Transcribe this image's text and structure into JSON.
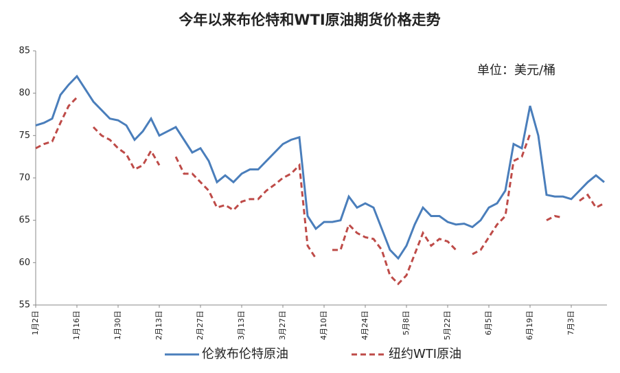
{
  "chart_data": {
    "type": "line",
    "title": "今年以来布伦特和WTI原油期货价格走势",
    "annotation": "单位：美元/桶",
    "categories": [
      "1月2日",
      null,
      null,
      null,
      null,
      "1月16日",
      null,
      null,
      null,
      null,
      "1月30日",
      null,
      null,
      null,
      null,
      "2月13日",
      null,
      null,
      null,
      null,
      "2月27日",
      null,
      null,
      null,
      null,
      "3月13日",
      null,
      null,
      null,
      null,
      "3月27日",
      null,
      null,
      null,
      null,
      "4月10日",
      null,
      null,
      null,
      null,
      "4月24日",
      null,
      null,
      null,
      null,
      "5月8日",
      null,
      null,
      null,
      null,
      "5月22日",
      null,
      null,
      null,
      null,
      "6月5日",
      null,
      null,
      null,
      null,
      "6月19日",
      null,
      null,
      null,
      null,
      "7月3日",
      null,
      null,
      null,
      null
    ],
    "series": [
      {
        "name": "伦敦布伦特原油",
        "color": "#4a7ebb",
        "dash": false,
        "values": [
          76.2,
          76.5,
          77.0,
          79.8,
          81.0,
          82.0,
          80.5,
          79.0,
          78.0,
          77.0,
          76.8,
          76.2,
          74.5,
          75.5,
          77.0,
          75.0,
          75.5,
          76.0,
          74.5,
          73.0,
          73.5,
          72.0,
          69.5,
          70.3,
          69.5,
          70.5,
          71.0,
          71.0,
          72.0,
          73.0,
          74.0,
          74.5,
          74.8,
          65.5,
          64.0,
          64.8,
          64.8,
          65.0,
          67.8,
          66.5,
          67.0,
          66.5,
          64.0,
          61.5,
          60.5,
          62.0,
          64.5,
          66.5,
          65.5,
          65.5,
          64.8,
          64.5,
          64.6,
          64.2,
          65.0,
          66.5,
          67.0,
          68.5,
          74.0,
          73.5,
          78.5,
          75.0,
          68.0,
          67.8,
          67.8,
          67.5,
          68.5,
          69.5,
          70.3,
          69.5
        ]
      },
      {
        "name": "纽约WTI原油",
        "color": "#be4b48",
        "dash": true,
        "values": [
          73.5,
          74.0,
          74.3,
          76.5,
          78.5,
          79.5,
          null,
          76.0,
          75.0,
          74.5,
          73.5,
          72.8,
          71.0,
          71.5,
          73.2,
          71.5,
          null,
          72.5,
          70.5,
          70.5,
          69.5,
          68.5,
          66.5,
          66.8,
          66.2,
          67.2,
          67.5,
          67.5,
          68.5,
          69.2,
          70.0,
          70.5,
          71.5,
          62.0,
          60.5,
          null,
          61.5,
          61.5,
          64.5,
          63.5,
          63.0,
          62.8,
          61.5,
          58.5,
          57.5,
          58.5,
          61.0,
          63.5,
          62.0,
          62.8,
          62.5,
          61.5,
          null,
          61.0,
          61.5,
          63.0,
          64.5,
          65.5,
          72.0,
          72.5,
          75.2,
          null,
          65.0,
          65.5,
          65.3,
          null,
          67.3,
          68.0,
          66.5,
          67.0
        ]
      }
    ],
    "ylim": [
      55,
      85
    ],
    "yticks": [
      55,
      60,
      65,
      70,
      75,
      80,
      85
    ]
  }
}
